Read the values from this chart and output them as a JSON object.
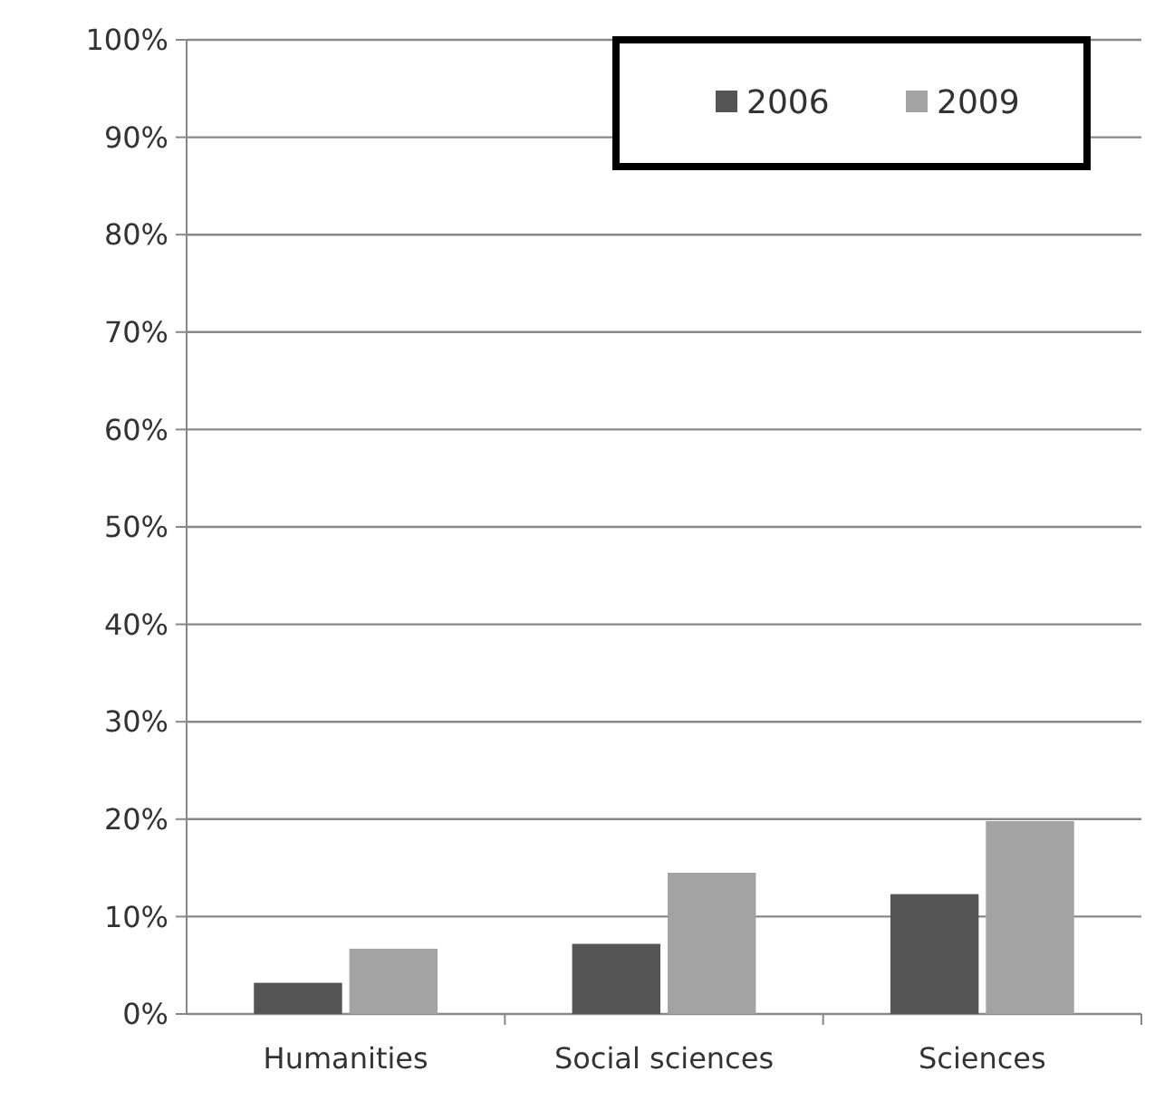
{
  "chart_data": {
    "type": "bar",
    "categories": [
      "Humanities",
      "Social sciences",
      "Sciences"
    ],
    "series": [
      {
        "name": "2006",
        "color": "#555555",
        "values": [
          3.2,
          7.2,
          12.3
        ]
      },
      {
        "name": "2009",
        "color": "#a3a3a3",
        "values": [
          6.7,
          14.5,
          19.8
        ]
      }
    ],
    "ylim": [
      0,
      100
    ],
    "yticks": [
      {
        "value": 0,
        "label": "0%"
      },
      {
        "value": 10,
        "label": "10%"
      },
      {
        "value": 20,
        "label": "20%"
      },
      {
        "value": 30,
        "label": "30%"
      },
      {
        "value": 40,
        "label": "40%"
      },
      {
        "value": 50,
        "label": "50%"
      },
      {
        "value": 60,
        "label": "60%"
      },
      {
        "value": 70,
        "label": "70%"
      },
      {
        "value": 80,
        "label": "80%"
      },
      {
        "value": 90,
        "label": "90%"
      },
      {
        "value": 100,
        "label": "100%"
      }
    ],
    "grid": "y",
    "legend": "top right"
  }
}
